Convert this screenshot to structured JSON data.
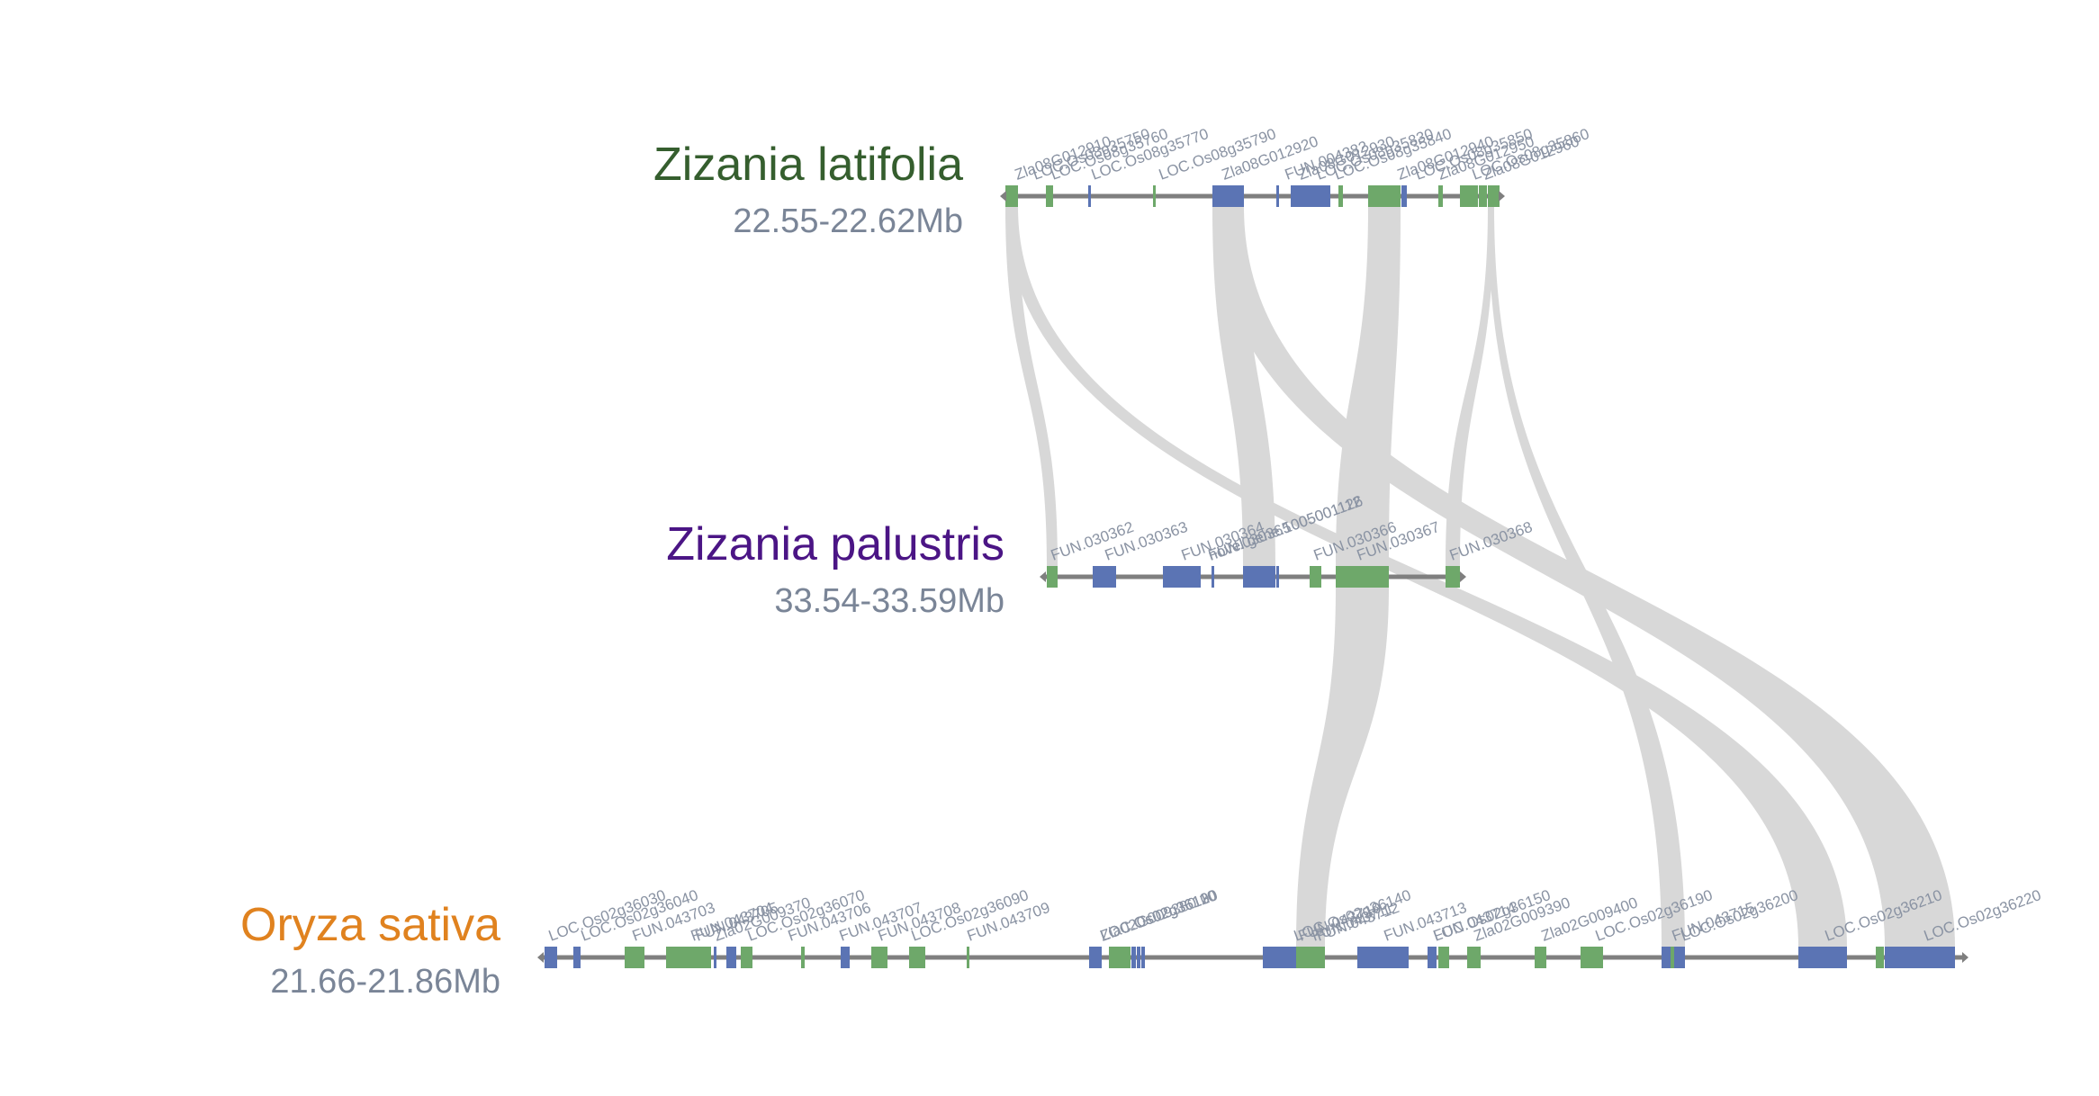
{
  "colors": {
    "forward_gene": "#5b74b4",
    "reverse_gene": "#6ea86a",
    "chromosome": "#7f7f7f",
    "link": "#d8d8d8",
    "label": "#8a93a3"
  },
  "tracks": [
    {
      "id": "zlat",
      "name": "Zizania latifolia",
      "range": "22.55-22.62Mb",
      "name_color": "#355e2e",
      "genes": [
        {
          "id": "Zla08G012910",
          "strand": "-"
        },
        {
          "id": "LOC.Os08g35750",
          "strand": "-"
        },
        {
          "id": "LOC.Os08g35760",
          "strand": "+"
        },
        {
          "id": "LOC.Os08g35770",
          "strand": "-"
        },
        {
          "id": "LOC.Os08g35790",
          "strand": "+"
        },
        {
          "id": "Zla08G012920",
          "strand": "+"
        },
        {
          "id": "FUN.004382",
          "strand": "+"
        },
        {
          "id": "Zla08G012930",
          "strand": "-"
        },
        {
          "id": "LOC.Os08g35830",
          "strand": "-"
        },
        {
          "id": "LOC.Os08g35840",
          "strand": "+"
        },
        {
          "id": "Zla08G012940",
          "strand": "-"
        },
        {
          "id": "LOC.Os08g35850",
          "strand": "-"
        },
        {
          "id": "Zla08G012950",
          "strand": "-"
        },
        {
          "id": "LOC.Os08g35860",
          "strand": "-"
        },
        {
          "id": "Zla08G012960",
          "strand": "-"
        }
      ]
    },
    {
      "id": "zpal",
      "name": "Zizania palustris",
      "range": "33.54-33.59Mb",
      "name_color": "#4b1585",
      "genes": [
        {
          "id": "FUN.030362",
          "strand": "-"
        },
        {
          "id": "FUN.030363",
          "strand": "+"
        },
        {
          "id": "FUN.030364",
          "strand": "+"
        },
        {
          "id": "novel.gene.1005001112",
          "strand": "+"
        },
        {
          "id": "FUN.030365",
          "strand": "+"
        },
        {
          "id": "novel.gene.1005001126",
          "strand": "+"
        },
        {
          "id": "FUN.030366",
          "strand": "-"
        },
        {
          "id": "FUN.030367",
          "strand": "-"
        },
        {
          "id": "FUN.030368",
          "strand": "-"
        }
      ]
    },
    {
      "id": "osat",
      "name": "Oryza sativa",
      "range": "21.66-21.86Mb",
      "name_color": "#e0821f",
      "genes": [
        {
          "id": "LOC.Os02g36030",
          "strand": "+"
        },
        {
          "id": "LOC.Os02g36040",
          "strand": "+"
        },
        {
          "id": "FUN.043703",
          "strand": "-"
        },
        {
          "id": "FUN.043704",
          "strand": "-"
        },
        {
          "id": "FUN.043705",
          "strand": "+"
        },
        {
          "id": "Zla02G009370",
          "strand": "+"
        },
        {
          "id": "LOC.Os02g36070",
          "strand": "-"
        },
        {
          "id": "FUN.043706",
          "strand": "-"
        },
        {
          "id": "FUN.043707",
          "strand": "+"
        },
        {
          "id": "FUN.043708",
          "strand": "-"
        },
        {
          "id": "LOC.Os02g36090",
          "strand": "-"
        },
        {
          "id": "FUN.043709",
          "strand": "-"
        },
        {
          "id": "LOC.Os02g36100",
          "strand": "+"
        },
        {
          "id": "Zla02G009380",
          "strand": "-"
        },
        {
          "id": "LOC.Os02g36110",
          "strand": "+"
        },
        {
          "id": "LOC.Os02g36120",
          "strand": "+"
        },
        {
          "id": "LOC.Os02g36130",
          "strand": "+"
        },
        {
          "id": "LOC.Os02g36140",
          "strand": "+"
        },
        {
          "id": "FUN.043710",
          "strand": "-"
        },
        {
          "id": "FUN.043711",
          "strand": "+"
        },
        {
          "id": "FUN.043712",
          "strand": "+"
        },
        {
          "id": "FUN.043713",
          "strand": "-"
        },
        {
          "id": "FUN.043714",
          "strand": "+"
        },
        {
          "id": "LOC.Os02g36150",
          "strand": "-"
        },
        {
          "id": "Zla02G009390",
          "strand": "-"
        },
        {
          "id": "Zla02G009400",
          "strand": "-"
        },
        {
          "id": "LOC.Os02g36190",
          "strand": "+"
        },
        {
          "id": "FUN.043715",
          "strand": "-"
        },
        {
          "id": "LOC.Os02g36200",
          "strand": "+"
        },
        {
          "id": "LOC.Os02g36210",
          "strand": "+"
        },
        {
          "id": "LOC.Os02g36220",
          "strand": "-"
        }
      ]
    }
  ]
}
